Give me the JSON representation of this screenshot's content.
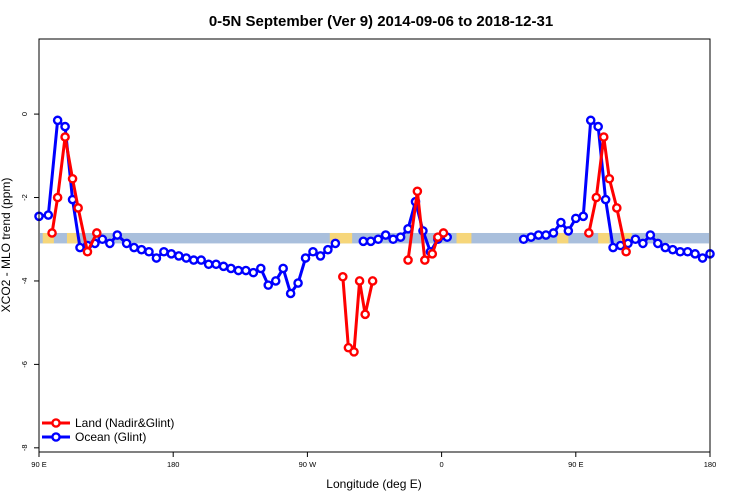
{
  "chart_data": {
    "type": "line",
    "title": "0-5N September (Ver 9)   2014-09-06 to 2018-12-31",
    "xlabel": "Longitude (deg E)",
    "ylabel": "XCO2 - MLO trend (ppm)",
    "xlim": [
      90,
      450
    ],
    "ylim": [
      -8.1,
      1.8
    ],
    "x_ticks": [
      {
        "value": 90,
        "label": "90 E"
      },
      {
        "value": 162,
        "label": "180"
      },
      {
        "value": 234,
        "label": "90 W"
      },
      {
        "value": 306,
        "label": "0"
      },
      {
        "value": 378,
        "label": "90 E"
      },
      {
        "value": 450,
        "label": "180"
      }
    ],
    "y_ticks": [
      {
        "value": 0,
        "label": "0"
      },
      {
        "value": -2,
        "label": "-2"
      },
      {
        "value": -4,
        "label": "-4"
      },
      {
        "value": -6,
        "label": "-6"
      },
      {
        "value": -8,
        "label": "-8"
      }
    ],
    "surface_band": {
      "y_range": [
        -3.1,
        -2.85
      ],
      "colors": {
        "ocean": "#a9bfdc",
        "land": "#f6d67a"
      },
      "land_ranges": [
        [
          92,
          98
        ],
        [
          105,
          112
        ],
        [
          246,
          258
        ],
        [
          314,
          322
        ],
        [
          368,
          374
        ],
        [
          390,
          396
        ],
        [
          402,
          408
        ]
      ]
    },
    "legend": {
      "position": "bottom-left"
    },
    "series": [
      {
        "name": "Land (Nadir&Glint)",
        "color": "#ff0000",
        "x": [
          97,
          100,
          104,
          108,
          111,
          116,
          121,
          253,
          256,
          259,
          262,
          265,
          269,
          288,
          293,
          297,
          301,
          304,
          307,
          385,
          389,
          393,
          396,
          400,
          405
        ],
        "y": [
          -2.85,
          -2.0,
          -0.55,
          -1.55,
          -2.25,
          -3.3,
          -2.85,
          -3.9,
          -5.6,
          -5.7,
          -4.0,
          -4.8,
          -4.0,
          -3.5,
          -1.85,
          -3.5,
          -3.35,
          -2.95,
          -2.85,
          -2.85,
          -2.0,
          -0.55,
          -1.55,
          -2.25,
          -3.3
        ]
      },
      {
        "name": "Ocean (Glint)",
        "x": [
          90,
          95,
          100,
          104,
          108,
          112,
          116,
          120,
          124,
          128,
          132,
          137,
          141,
          145,
          149,
          153,
          157,
          161,
          165,
          169,
          173,
          177,
          181,
          185,
          189,
          193,
          197,
          201,
          205,
          209,
          213,
          217,
          221,
          225,
          229,
          233,
          237,
          241,
          245,
          249,
          264,
          268,
          272,
          276,
          280,
          284,
          288,
          292,
          296,
          300,
          304,
          309,
          350,
          354,
          358,
          362,
          366,
          370,
          374,
          378,
          382,
          386,
          390,
          394,
          398,
          402,
          406,
          410,
          414,
          418,
          422,
          426,
          430,
          434,
          438,
          442,
          446,
          450
        ],
        "y": [
          -2.45,
          -2.42,
          -0.15,
          -0.3,
          -2.05,
          -3.2,
          -3.15,
          -3.1,
          -3.0,
          -3.1,
          -2.9,
          -3.1,
          -3.2,
          -3.25,
          -3.3,
          -3.45,
          -3.3,
          -3.35,
          -3.4,
          -3.45,
          -3.5,
          -3.5,
          -3.6,
          -3.6,
          -3.65,
          -3.7,
          -3.75,
          -3.75,
          -3.8,
          -3.7,
          -4.1,
          -4.0,
          -3.7,
          -4.3,
          -4.05,
          -3.45,
          -3.3,
          -3.4,
          -3.25,
          -3.1,
          -3.05,
          -3.05,
          -3.0,
          -2.9,
          -3.0,
          -2.95,
          -2.75,
          -2.1,
          -2.8,
          -3.3,
          -3.0,
          -2.95,
          -3.0,
          -2.95,
          -2.9,
          -2.9,
          -2.85,
          -2.6,
          -2.8,
          -2.5,
          -2.45,
          -0.15,
          -0.3,
          -2.05,
          -3.2,
          -3.15,
          -3.1,
          -3.0,
          -3.1,
          -2.9,
          -3.1,
          -3.2,
          -3.25,
          -3.3,
          -3.3,
          -3.35,
          -3.45,
          -3.35
        ],
        "color": "#0000ff"
      }
    ]
  }
}
